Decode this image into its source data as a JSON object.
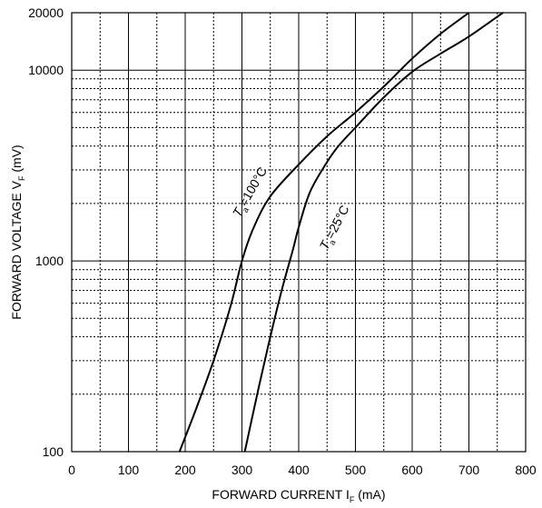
{
  "chart_data": {
    "type": "line",
    "title": "",
    "xlabel": {
      "main": "FORWARD CURRENT I",
      "sub": "F",
      "unit": " (mA)"
    },
    "ylabel": {
      "main": "FORWARD VOLTAGE V",
      "sub": "F",
      "unit": " (mV)"
    },
    "xlim": [
      0,
      800
    ],
    "ylim": [
      100,
      20000
    ],
    "yscale": "log",
    "grid": true,
    "x_major_ticks": [
      0,
      100,
      200,
      300,
      400,
      500,
      600,
      700,
      800
    ],
    "x_minor_ticks": [
      50,
      150,
      250,
      350,
      450,
      550,
      650,
      750
    ],
    "y_major_ticks": [
      100,
      1000,
      10000,
      20000
    ],
    "x_tick_labels": [
      "0",
      "100",
      "200",
      "300",
      "400",
      "500",
      "600",
      "700",
      "800"
    ],
    "y_tick_labels": [
      "100",
      "1000",
      "10000",
      "20000"
    ],
    "series": [
      {
        "name": "Ta=100°C",
        "label": {
          "main": "T",
          "sub": "a",
          "rest": "=100°C"
        },
        "x": [
          190,
          220,
          250,
          280,
          300,
          320,
          350,
          400,
          450,
          500,
          550,
          600,
          650,
          700
        ],
        "y": [
          100,
          170,
          300,
          580,
          1000,
          1480,
          2180,
          3200,
          4500,
          6000,
          8200,
          11500,
          15500,
          20000
        ]
      },
      {
        "name": "Ta=25°C",
        "label": {
          "main": "T",
          "sub": "a",
          "rest": "=25°C"
        },
        "x": [
          305,
          330,
          350,
          370,
          390,
          400,
          420,
          450,
          470,
          500,
          550,
          600,
          650,
          700,
          760
        ],
        "y": [
          100,
          220,
          400,
          700,
          1150,
          1500,
          2300,
          3300,
          4000,
          5000,
          7200,
          9800,
          12200,
          15000,
          20000
        ]
      }
    ]
  }
}
